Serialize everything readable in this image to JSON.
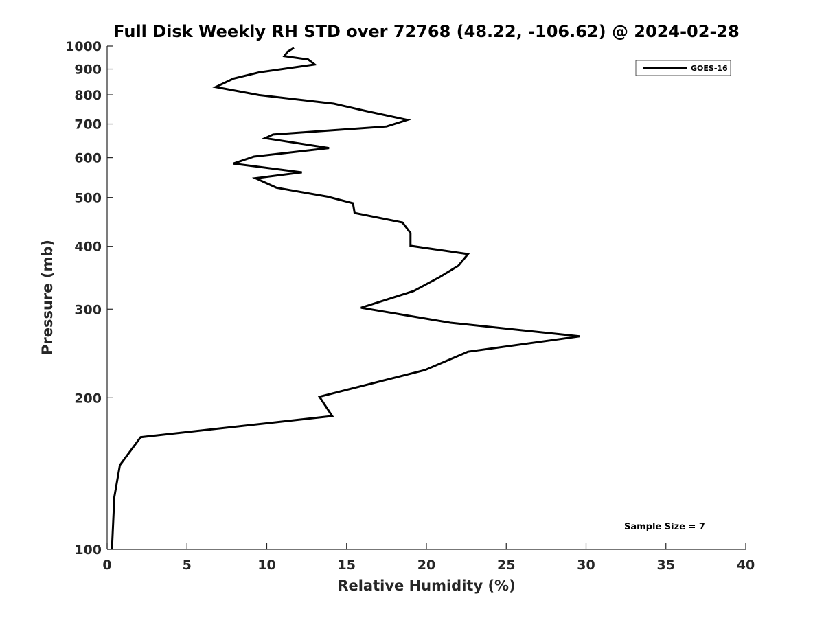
{
  "chart_data": {
    "type": "line",
    "title": "Full Disk Weekly RH STD over 72768 (48.22, -106.62) @ 2024-02-28",
    "xlabel": "Relative Humidity (%)",
    "ylabel": "Pressure (mb)",
    "xlim": [
      0,
      40
    ],
    "ylim": [
      1000,
      100
    ],
    "y_scale": "log",
    "x_ticks": [
      "0",
      "5",
      "10",
      "15",
      "20",
      "25",
      "30",
      "35",
      "40"
    ],
    "y_ticks": [
      "100",
      "200",
      "300",
      "400",
      "500",
      "600",
      "700",
      "800",
      "900",
      "1000"
    ],
    "grid": false,
    "legend": {
      "placement": "top-right",
      "entries": [
        "GOES-16"
      ]
    },
    "annotation": "Sample Size = 7",
    "series": [
      {
        "name": "GOES-16",
        "color": "#000000",
        "x": [
          0.3,
          0.45,
          0.8,
          2.1,
          14.1,
          13.3,
          19.9,
          22.6,
          29.6,
          21.5,
          15.9,
          19.2,
          20.8,
          22.0,
          22.6,
          19.0,
          19.0,
          18.5,
          15.5,
          15.4,
          13.8,
          10.6,
          9.3,
          12.2,
          7.9,
          9.2,
          13.9,
          9.9,
          10.4,
          17.5,
          18.8,
          16.1,
          14.2,
          9.5,
          6.8,
          7.9,
          9.5,
          13.0,
          12.6,
          11.1,
          11.3,
          11.7
        ],
        "y": [
          100,
          127,
          147,
          167,
          184,
          201,
          227,
          247,
          265,
          282,
          302,
          326,
          347,
          366,
          386,
          401,
          425,
          446,
          466,
          487,
          502,
          523,
          546,
          561,
          584,
          603,
          627,
          656,
          667,
          692,
          713,
          744,
          768,
          799,
          829,
          861,
          886,
          919,
          940,
          955,
          974,
          992
        ]
      }
    ]
  }
}
